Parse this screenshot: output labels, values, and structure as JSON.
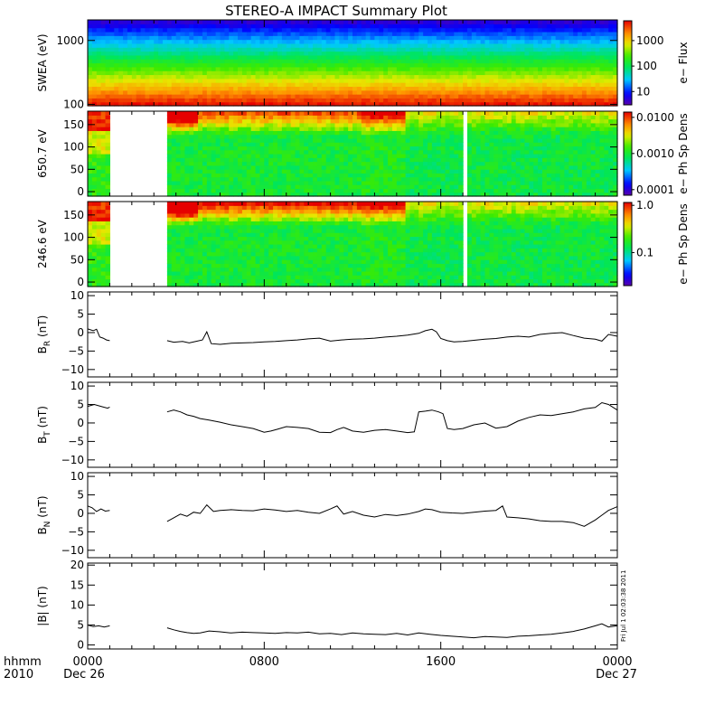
{
  "title": "STEREO-A IMPACT Summary Plot",
  "stamp": "Fri Jul  1 02:03:38 2011",
  "footer": {
    "label_top": "hhmm",
    "label_bottom": "2010",
    "start_date": "Dec 26",
    "end_date": "Dec 27"
  },
  "colors": {
    "axis": "#000000",
    "line": "#000000",
    "background": "#ffffff"
  },
  "chart_data": [
    {
      "type": "heatmap",
      "name": "swea-flux",
      "ylabel": "SWEA (eV)",
      "ylim": [
        95,
        2100
      ],
      "yscale": "log",
      "yticks": [
        100,
        1000
      ],
      "ytick_labels": [
        "100",
        "1000"
      ],
      "colorbar_label": "e− Flux",
      "colorbar_scale": "log",
      "colorbar_range": [
        3,
        6000
      ],
      "colorbar_ticks": [
        10,
        100,
        1000
      ],
      "colorbar_tick_labels": [
        "10",
        "100",
        "1000"
      ],
      "x_range_hours": [
        0,
        24
      ],
      "data_gaps_hours": []
    },
    {
      "type": "heatmap",
      "name": "pad-650",
      "ylabel": "650.7 eV",
      "ylim": [
        -10,
        180
      ],
      "yticks": [
        0,
        50,
        100,
        150
      ],
      "ytick_labels": [
        "0",
        "50",
        "100",
        "150"
      ],
      "colorbar_label": "e− Ph Sp Dens",
      "colorbar_scale": "log",
      "colorbar_range": [
        7e-05,
        0.014
      ],
      "colorbar_ticks": [
        0.0001,
        0.001,
        0.01
      ],
      "colorbar_tick_labels": [
        "0.0001",
        "0.0010",
        "0.0100"
      ],
      "x_range_hours": [
        0,
        24
      ],
      "data_gaps_hours": [
        [
          1.0,
          3.6
        ]
      ]
    },
    {
      "type": "heatmap",
      "name": "pad-246",
      "ylabel": "246.6 eV",
      "ylim": [
        -10,
        180
      ],
      "yticks": [
        0,
        50,
        100,
        150
      ],
      "ytick_labels": [
        "0",
        "50",
        "100",
        "150"
      ],
      "colorbar_label": "e− Ph Sp Dens",
      "colorbar_scale": "log",
      "colorbar_range": [
        0.02,
        1.15
      ],
      "colorbar_ticks": [
        0.1,
        1.0
      ],
      "colorbar_tick_labels": [
        "0.1",
        "1.0"
      ],
      "x_range_hours": [
        0,
        24
      ],
      "data_gaps_hours": [
        [
          1.0,
          3.6
        ]
      ]
    },
    {
      "type": "line",
      "name": "br",
      "ylabel": "B",
      "ylabel_sub": "R",
      "ylabel_unit": "(nT)",
      "ylim": [
        -12,
        11
      ],
      "yticks": [
        -10,
        -5,
        0,
        5,
        10
      ],
      "ytick_labels": [
        "−10",
        "−5",
        "0",
        "5",
        "10"
      ],
      "x": [
        0,
        0.25,
        0.4,
        0.55,
        0.7,
        0.85,
        1.0,
        3.6,
        3.9,
        4.3,
        4.6,
        4.9,
        5.2,
        5.4,
        5.6,
        6.0,
        6.5,
        7.0,
        7.5,
        8.0,
        8.5,
        9.0,
        9.5,
        10.0,
        10.5,
        11.0,
        11.5,
        12.0,
        12.5,
        13.0,
        13.5,
        14.0,
        14.5,
        15.0,
        15.3,
        15.6,
        15.8,
        16.0,
        16.3,
        16.6,
        17.0,
        17.5,
        18.0,
        18.5,
        19.0,
        19.5,
        20.0,
        20.5,
        21.0,
        21.5,
        22.0,
        22.5,
        23.0,
        23.3,
        23.6,
        24.0
      ],
      "values": [
        1.0,
        0.5,
        0.9,
        -1.2,
        -1.5,
        -2.0,
        -2.2,
        -2.2,
        -2.6,
        -2.4,
        -2.8,
        -2.4,
        -2.0,
        0.2,
        -3.0,
        -3.2,
        -2.9,
        -2.8,
        -2.7,
        -2.5,
        -2.4,
        -2.2,
        -2.0,
        -1.7,
        -1.5,
        -2.3,
        -2.0,
        -1.8,
        -1.7,
        -1.5,
        -1.2,
        -1.0,
        -0.7,
        -0.2,
        0.5,
        0.9,
        0.2,
        -1.6,
        -2.2,
        -2.5,
        -2.4,
        -2.1,
        -1.8,
        -1.6,
        -1.2,
        -1.0,
        -1.2,
        -0.5,
        -0.2,
        0.0,
        -0.8,
        -1.5,
        -1.8,
        -2.3,
        -0.5,
        -1.0
      ],
      "gaps_after_hours": [
        1.0
      ]
    },
    {
      "type": "line",
      "name": "bt",
      "ylabel": "B",
      "ylabel_sub": "T",
      "ylabel_unit": "(nT)",
      "ylim": [
        -12,
        11
      ],
      "yticks": [
        -10,
        -5,
        0,
        5,
        10
      ],
      "ytick_labels": [
        "−10",
        "−5",
        "0",
        "5",
        "10"
      ],
      "x": [
        0,
        0.3,
        0.6,
        0.9,
        1.0,
        3.6,
        3.9,
        4.2,
        4.5,
        4.8,
        5.1,
        5.5,
        6.0,
        6.5,
        7.0,
        7.5,
        8.0,
        8.3,
        8.6,
        9.0,
        9.5,
        10.0,
        10.5,
        11.0,
        11.3,
        11.6,
        12.0,
        12.5,
        13.0,
        13.5,
        14.0,
        14.5,
        14.8,
        15.0,
        15.3,
        15.6,
        15.9,
        16.1,
        16.3,
        16.6,
        17.0,
        17.5,
        18.0,
        18.5,
        19.0,
        19.5,
        20.0,
        20.5,
        21.0,
        21.5,
        22.0,
        22.5,
        23.0,
        23.3,
        23.6,
        24.0
      ],
      "values": [
        4.5,
        5.0,
        4.5,
        4.0,
        4.3,
        3.0,
        3.5,
        3.0,
        2.2,
        1.8,
        1.2,
        0.8,
        0.2,
        -0.5,
        -1.0,
        -1.5,
        -2.5,
        -2.2,
        -1.7,
        -1.0,
        -1.2,
        -1.5,
        -2.5,
        -2.6,
        -1.8,
        -1.2,
        -2.2,
        -2.5,
        -2.0,
        -1.8,
        -2.2,
        -2.6,
        -2.4,
        3.0,
        3.2,
        3.5,
        3.0,
        2.5,
        -1.5,
        -1.8,
        -1.5,
        -0.5,
        0.0,
        -1.4,
        -1.0,
        0.5,
        1.5,
        2.2,
        2.0,
        2.5,
        3.0,
        3.8,
        4.2,
        5.5,
        5.0,
        3.5
      ],
      "gaps_after_hours": [
        1.0
      ]
    },
    {
      "type": "line",
      "name": "bn",
      "ylabel": "B",
      "ylabel_sub": "N",
      "ylabel_unit": "(nT)",
      "ylim": [
        -12,
        11
      ],
      "yticks": [
        -10,
        -5,
        0,
        5,
        10
      ],
      "ytick_labels": [
        "−10",
        "−5",
        "0",
        "5",
        "10"
      ],
      "x": [
        0,
        0.2,
        0.4,
        0.6,
        0.8,
        1.0,
        3.6,
        3.9,
        4.2,
        4.5,
        4.8,
        5.1,
        5.4,
        5.7,
        6.0,
        6.5,
        7.0,
        7.5,
        8.0,
        8.5,
        9.0,
        9.5,
        10.0,
        10.5,
        11.0,
        11.3,
        11.6,
        12.0,
        12.5,
        13.0,
        13.5,
        14.0,
        14.5,
        15.0,
        15.3,
        15.6,
        16.0,
        16.5,
        17.0,
        17.5,
        18.0,
        18.5,
        18.8,
        19.0,
        19.5,
        20.0,
        20.5,
        21.0,
        21.5,
        22.0,
        22.5,
        23.0,
        23.3,
        23.6,
        24.0
      ],
      "values": [
        2.0,
        1.5,
        0.5,
        1.2,
        0.6,
        0.8,
        -2.2,
        -1.2,
        -0.2,
        -0.8,
        0.3,
        0.0,
        2.3,
        0.5,
        0.8,
        1.0,
        0.8,
        0.7,
        1.2,
        0.9,
        0.5,
        0.8,
        0.3,
        0.0,
        1.2,
        2.0,
        -0.2,
        0.5,
        -0.5,
        -1.0,
        -0.3,
        -0.6,
        -0.2,
        0.5,
        1.2,
        1.0,
        0.3,
        0.1,
        0.0,
        0.3,
        0.6,
        0.8,
        2.0,
        -1.0,
        -1.2,
        -1.5,
        -2.0,
        -2.2,
        -2.2,
        -2.5,
        -3.5,
        -1.8,
        -0.5,
        0.8,
        1.8
      ],
      "gaps_after_hours": [
        1.0
      ]
    },
    {
      "type": "line",
      "name": "bmag",
      "ylabel": "|B|",
      "ylabel_unit": "(nT)",
      "ylim": [
        -1,
        20.5
      ],
      "yticks": [
        0,
        5,
        10,
        15,
        20
      ],
      "ytick_labels": [
        "0",
        "5",
        "10",
        "15",
        "20"
      ],
      "x": [
        0,
        0.25,
        0.5,
        0.75,
        1.0,
        3.6,
        3.9,
        4.2,
        4.5,
        4.8,
        5.1,
        5.5,
        6.0,
        6.5,
        7.0,
        7.5,
        8.0,
        8.5,
        9.0,
        9.5,
        10.0,
        10.5,
        11.0,
        11.5,
        12.0,
        12.5,
        13.0,
        13.5,
        14.0,
        14.5,
        15.0,
        15.5,
        16.0,
        16.5,
        17.0,
        17.5,
        18.0,
        18.5,
        19.0,
        19.5,
        20.0,
        20.5,
        21.0,
        21.5,
        22.0,
        22.5,
        23.0,
        23.3,
        23.6,
        24.0
      ],
      "values": [
        5.0,
        4.6,
        4.8,
        4.5,
        4.8,
        4.3,
        3.8,
        3.4,
        3.1,
        2.9,
        3.0,
        3.5,
        3.3,
        3.0,
        3.2,
        3.1,
        3.0,
        2.9,
        3.1,
        3.0,
        3.2,
        2.8,
        2.9,
        2.6,
        3.0,
        2.8,
        2.7,
        2.6,
        2.9,
        2.5,
        3.0,
        2.7,
        2.4,
        2.2,
        2.0,
        1.8,
        2.1,
        2.0,
        1.9,
        2.2,
        2.3,
        2.5,
        2.7,
        3.0,
        3.4,
        4.0,
        4.8,
        5.3,
        4.5,
        4.8
      ],
      "gaps_after_hours": [
        1.0
      ]
    }
  ],
  "x_axis": {
    "range_hours": [
      0,
      24
    ],
    "tick_hours": [
      0,
      8,
      16,
      24
    ],
    "tick_labels": [
      "0000",
      "0800",
      "1600",
      "0000"
    ],
    "minor_every_hours": 1
  }
}
